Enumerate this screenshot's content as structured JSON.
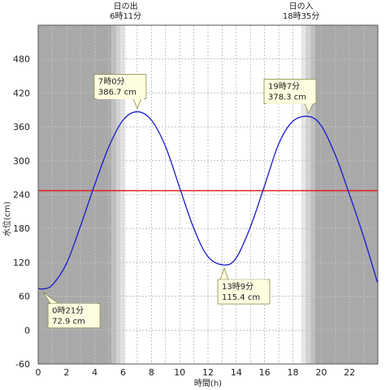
{
  "chart_data": {
    "type": "line",
    "xlabel": "時間(h)",
    "ylabel": "水位(cm)",
    "xlim": [
      0,
      24
    ],
    "ylim": [
      -60,
      540
    ],
    "x_ticks": [
      0,
      2,
      4,
      6,
      8,
      10,
      12,
      14,
      16,
      18,
      20,
      22
    ],
    "y_ticks": [
      -60,
      0,
      60,
      120,
      180,
      240,
      300,
      360,
      420,
      480
    ],
    "x_tick_labels": [
      "0",
      "2",
      "4",
      "6",
      "8",
      "10",
      "12",
      "14",
      "16",
      "18",
      "20",
      "22"
    ],
    "y_tick_labels": [
      "-60",
      "0",
      "60",
      "120",
      "180",
      "240",
      "300",
      "360",
      "420",
      "480"
    ],
    "grid": true,
    "series": [
      {
        "color": "#1a1acc",
        "x": [
          0,
          0.35,
          1,
          2,
          3,
          4,
          5,
          6,
          7,
          8,
          9,
          10,
          11,
          12,
          13.15,
          14,
          15,
          16,
          17,
          18,
          19.12,
          20,
          21,
          22,
          23,
          23.98
        ],
        "y": [
          74,
          72.9,
          80,
          118,
          185,
          258,
          325,
          372,
          386.7,
          372,
          325,
          252,
          180,
          130,
          115.4,
          128,
          183,
          256,
          330,
          370,
          378.3,
          362,
          310,
          240,
          165,
          84
        ]
      }
    ],
    "reference_line": {
      "y": 247,
      "color": "#e02020"
    },
    "sunrise": {
      "label": "日の出",
      "time": "6時11分",
      "hour": 6.18
    },
    "sunset": {
      "label": "日の入",
      "time": "18時35分",
      "hour": 18.58
    },
    "annotations": [
      {
        "time": "0時21分",
        "value": "72.9 cm",
        "x": 0.35,
        "y": 72.9
      },
      {
        "time": "7時0分",
        "value": "386.7 cm",
        "x": 7.0,
        "y": 386.7
      },
      {
        "time": "13時9分",
        "value": "115.4 cm",
        "x": 13.15,
        "y": 115.4
      },
      {
        "time": "19時7分",
        "value": "378.3 cm",
        "x": 19.12,
        "y": 378.3
      }
    ]
  },
  "colors": {
    "night": "#a9a9a9",
    "twilight1": "#bebebe",
    "twilight2": "#d2d2d2",
    "twilight3": "#e6e6e6",
    "day": "#ffffff",
    "annotation_fill": "#fffde0",
    "annotation_border": "#8a8a4a"
  }
}
